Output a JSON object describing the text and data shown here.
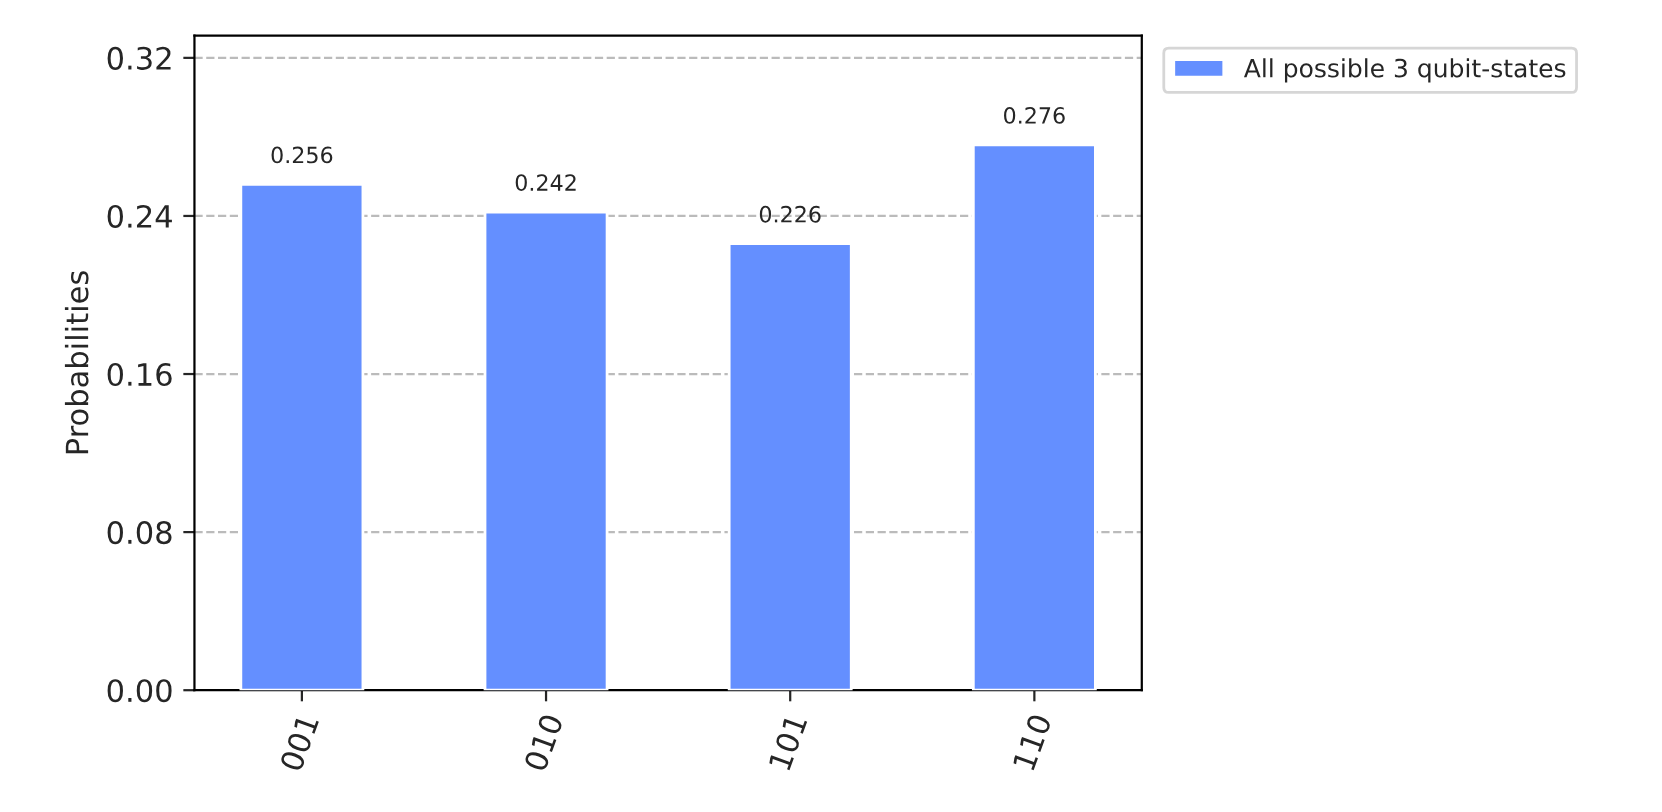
{
  "chart_data": {
    "type": "bar",
    "ylabel": "Probabilities",
    "categories": [
      "001",
      "010",
      "101",
      "110"
    ],
    "series": [
      {
        "name": "All possible 3 qubit-states",
        "color": "#648fff",
        "values": [
          0.256,
          0.242,
          0.226,
          0.276
        ]
      }
    ],
    "ylim": [
      0,
      0.3312
    ],
    "yticks": [
      {
        "value": 0,
        "label": "0.00"
      },
      {
        "value": 0.08,
        "label": "0.08"
      },
      {
        "value": 0.16,
        "label": "0.16"
      },
      {
        "value": 0.24,
        "label": "0.24"
      },
      {
        "value": 0.32,
        "label": "0.32"
      }
    ],
    "grid": "y",
    "legend": "top right",
    "data_labels": true
  }
}
